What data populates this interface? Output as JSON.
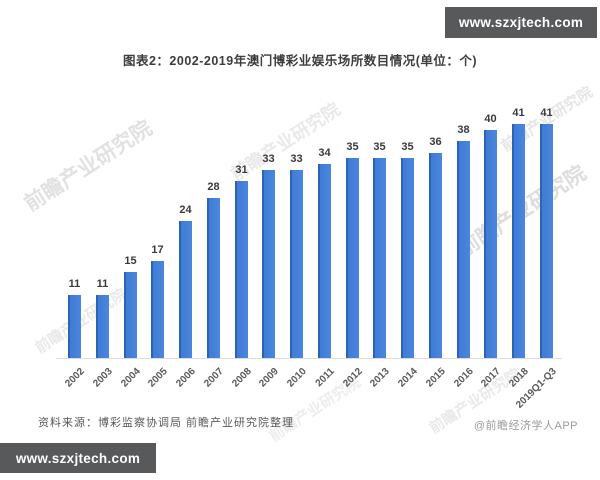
{
  "banners": {
    "top": "www.szxjtech.com",
    "bottom": "www.szxjtech.com"
  },
  "title": "图表2：2002-2019年澳门博彩业娱乐场所数目情况(单位：个)",
  "chart_data": {
    "type": "bar",
    "categories": [
      "2002",
      "2003",
      "2004",
      "2005",
      "2006",
      "2007",
      "2008",
      "2009",
      "2010",
      "2011",
      "2012",
      "2013",
      "2014",
      "2015",
      "2016",
      "2017",
      "2018",
      "2019Q1-Q3"
    ],
    "values": [
      11,
      11,
      15,
      17,
      24,
      28,
      31,
      33,
      33,
      34,
      35,
      35,
      35,
      36,
      38,
      40,
      41,
      41
    ],
    "title": "图表2：2002-2019年澳门博彩业娱乐场所数目情况(单位：个)",
    "xlabel": "",
    "ylabel": "",
    "ylim": [
      0,
      45
    ],
    "bar_color": "#3f7cd6",
    "value_labels": true,
    "grid": false,
    "legend": "none"
  },
  "watermark": {
    "text": "前瞻产业研究院",
    "color": "#9e9e9e"
  },
  "footer": {
    "source": "资料来源：博彩监察协调局 前瞻产业研究院整理",
    "attribution": "@前瞻经济学人APP"
  }
}
